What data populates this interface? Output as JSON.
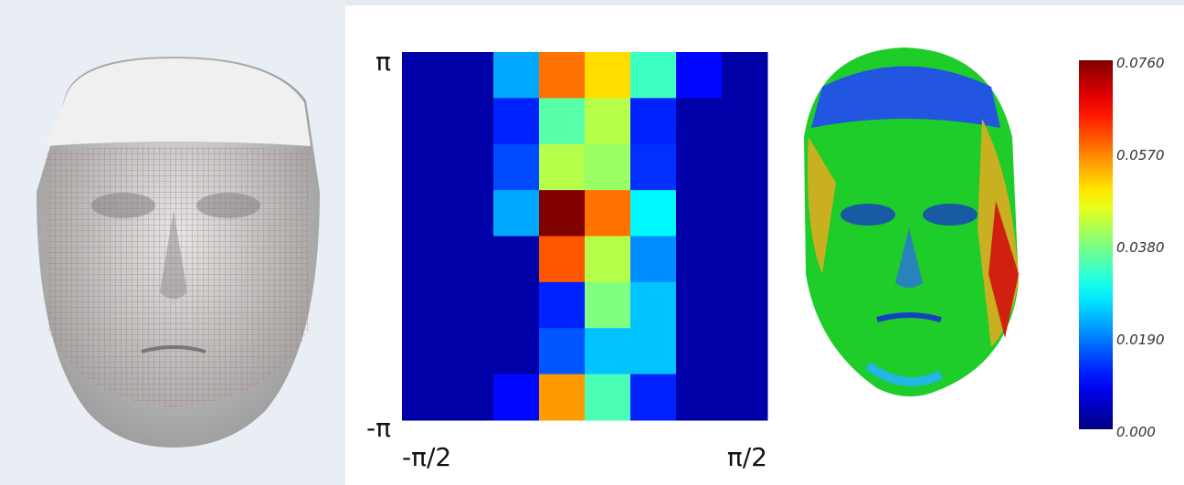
{
  "chart_data": {
    "type": "heatmap",
    "xlim": [
      -1.5708,
      1.5708
    ],
    "xticks": [
      {
        "value": -1.5708,
        "label": "-π/2"
      },
      {
        "value": 1.5708,
        "label": "π/2"
      }
    ],
    "ylim": [
      -3.1416,
      3.1416
    ],
    "yticks": [
      {
        "value": 3.1416,
        "label": "π"
      },
      {
        "value": -3.1416,
        "label": "-π"
      }
    ],
    "values": [
      [
        0.003,
        0.003,
        0.022,
        0.058,
        0.05,
        0.033,
        0.01,
        0.003
      ],
      [
        0.003,
        0.003,
        0.012,
        0.035,
        0.042,
        0.012,
        0.003,
        0.003
      ],
      [
        0.003,
        0.003,
        0.015,
        0.042,
        0.04,
        0.013,
        0.003,
        0.003
      ],
      [
        0.003,
        0.003,
        0.022,
        0.076,
        0.058,
        0.028,
        0.003,
        0.003
      ],
      [
        0.003,
        0.003,
        0.003,
        0.06,
        0.042,
        0.02,
        0.003,
        0.003
      ],
      [
        0.003,
        0.003,
        0.003,
        0.012,
        0.038,
        0.024,
        0.003,
        0.003
      ],
      [
        0.003,
        0.003,
        0.003,
        0.016,
        0.024,
        0.024,
        0.003,
        0.003
      ],
      [
        0.003,
        0.003,
        0.01,
        0.055,
        0.034,
        0.012,
        0.003,
        0.003
      ]
    ],
    "colormap": "jet",
    "clim": [
      0,
      0.076
    ],
    "cticks": [
      {
        "value": 0.076,
        "label": "0.0760"
      },
      {
        "value": 0.057,
        "label": "0.0570"
      },
      {
        "value": 0.038,
        "label": "0.0380"
      },
      {
        "value": 0.019,
        "label": "0.0190"
      },
      {
        "value": 0,
        "label": "0.000"
      }
    ]
  }
}
